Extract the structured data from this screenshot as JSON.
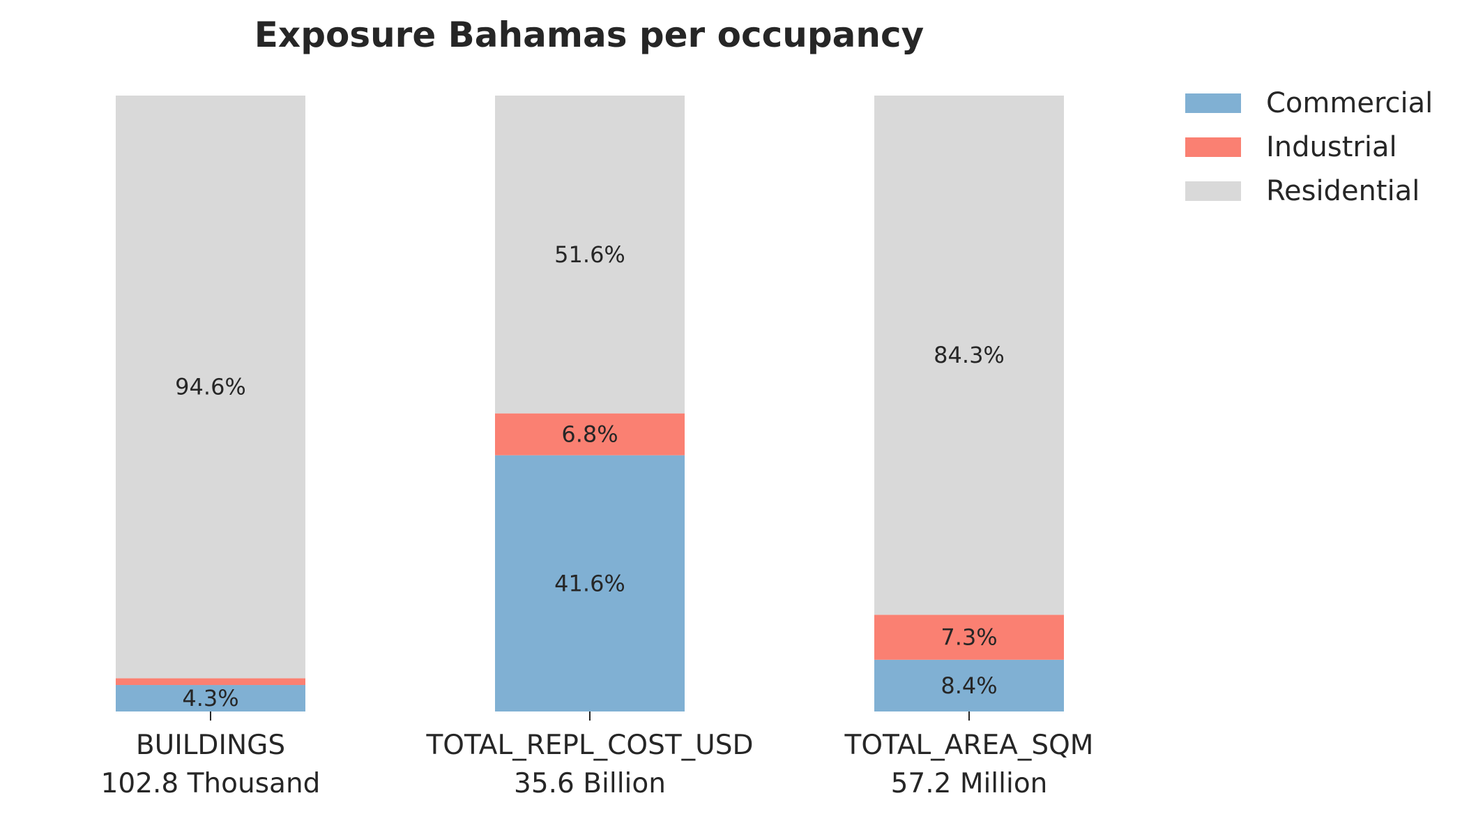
{
  "chart_data": {
    "type": "bar",
    "stacked": true,
    "title": "Exposure Bahamas per occupancy",
    "xlabel": "",
    "ylabel": "",
    "ylim": [
      0,
      100
    ],
    "grid": false,
    "legend_position": "top-right, outside plot",
    "categories": [
      "BUILDINGS",
      "TOTAL_REPL_COST_USD",
      "TOTAL_AREA_SQM"
    ],
    "category_totals": [
      "102.8 Thousand",
      "35.6 Billion",
      "57.2 Million"
    ],
    "series": [
      {
        "name": "Commercial",
        "color": "#80B0D3",
        "values": [
          4.3,
          41.6,
          8.4
        ],
        "labels": [
          "4.3%",
          "41.6%",
          "8.4%"
        ]
      },
      {
        "name": "Industrial",
        "color": "#FA8072",
        "values": [
          1.1,
          6.8,
          7.3
        ],
        "labels": [
          "",
          "6.8%",
          "7.3%"
        ]
      },
      {
        "name": "Residential",
        "color": "#D9D9D9",
        "values": [
          94.6,
          51.6,
          84.3
        ],
        "labels": [
          "94.6%",
          "51.6%",
          "84.3%"
        ]
      }
    ]
  }
}
